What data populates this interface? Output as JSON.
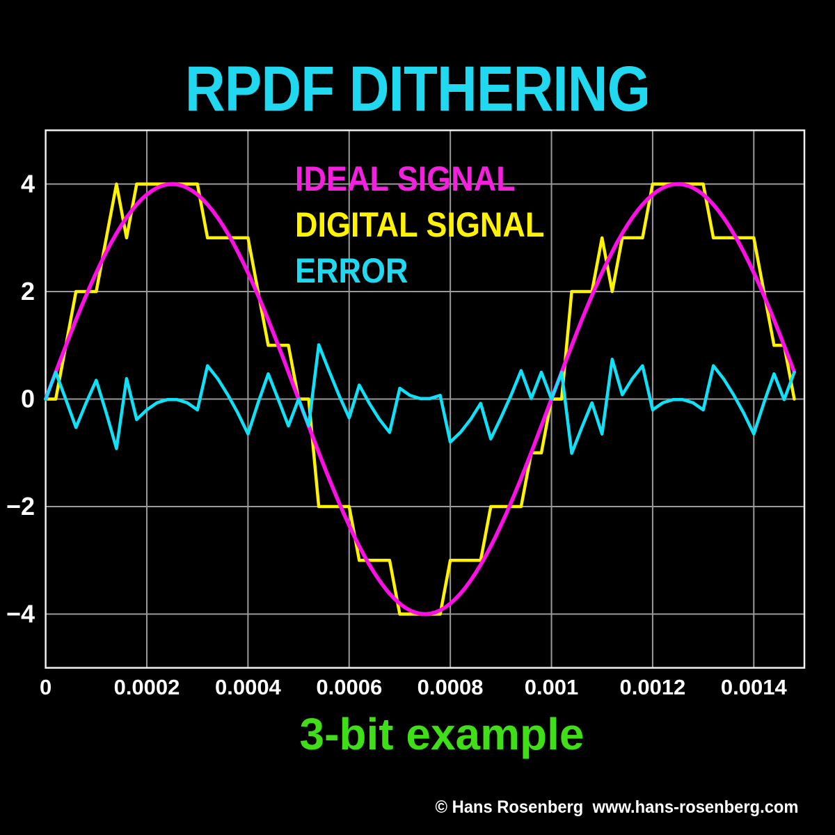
{
  "title": "RPDF DITHERING",
  "caption": "3-bit example",
  "footer": "© Hans Rosenberg  www.hans-rosenberg.com",
  "legend": [
    {
      "label": "IDEAL SIGNAL",
      "color": "#f320de"
    },
    {
      "label": "DIGITAL SIGNAL",
      "color": "#fff300"
    },
    {
      "label": "ERROR",
      "color": "#21d8f1"
    }
  ],
  "colors": {
    "background": "#000000",
    "title_cyan": "#21d8f1",
    "caption_green": "#3fde17",
    "footer_white": "#ffffff",
    "grid": "#9a9a9a",
    "spine": "#f0f0f0",
    "ideal_line": "#fc0fe4",
    "digital_line": "#fff300",
    "error_line": "#0ee1f8"
  },
  "chart_data": {
    "type": "line",
    "title": "RPDF DITHERING",
    "xlabel": "",
    "ylabel": "",
    "xlim": [
      0,
      0.0015
    ],
    "ylim": [
      -5,
      5
    ],
    "grid": true,
    "legend_position": "upper-left-inside",
    "sample_step_s": 2e-05,
    "xticks": {
      "values": [
        0,
        0.0002,
        0.0004,
        0.0006,
        0.0008,
        0.001,
        0.0012,
        0.0014
      ],
      "labels": [
        "0",
        "0.0002",
        "0.0004",
        "0.0006",
        "0.0008",
        "0.001",
        "0.0012",
        "0.0014"
      ]
    },
    "yticks": {
      "values": [
        4,
        2,
        0,
        -2,
        -4
      ],
      "labels": [
        "4",
        "2",
        "0",
        "−2",
        "−4"
      ]
    },
    "series": [
      {
        "name": "IDEAL SIGNAL",
        "shape": "sine",
        "amplitude": 4,
        "frequency_hz": 1000,
        "t_start": 0,
        "t_end": 0.00148,
        "color": "#fc0fe4",
        "stroke_width": 5.5
      },
      {
        "name": "DIGITAL SIGNAL",
        "shape": "samples",
        "color": "#fff300",
        "stroke_width": 4.5,
        "values": [
          0,
          0,
          1,
          2,
          2,
          2,
          3,
          4,
          3,
          4,
          4,
          4,
          4,
          4,
          4,
          4,
          3,
          3,
          3,
          3,
          3,
          2,
          1,
          1,
          1,
          0,
          0,
          -2,
          -2,
          -2,
          -2,
          -3,
          -3,
          -3,
          -3,
          -4,
          -4,
          -4,
          -4,
          -4,
          -3,
          -3,
          -3,
          -3,
          -2,
          -2,
          -2,
          -2,
          -1,
          -1,
          0,
          0,
          2,
          2,
          2,
          3,
          2,
          3,
          3,
          3,
          4,
          4,
          4,
          4,
          4,
          4,
          3,
          3,
          3,
          3,
          3,
          2,
          1,
          1,
          0
        ]
      },
      {
        "name": "ERROR",
        "shape": "samples",
        "color": "#0ee1f8",
        "stroke_width": 4.5,
        "values": [
          0.0,
          0.5,
          -0.01,
          -0.53,
          -0.07,
          0.35,
          -0.26,
          -0.92,
          0.38,
          -0.38,
          -0.2,
          -0.07,
          -0.01,
          -0.01,
          -0.07,
          -0.2,
          0.62,
          0.38,
          0.08,
          -0.26,
          -0.65,
          -0.07,
          0.47,
          -0.01,
          -0.5,
          0.0,
          -0.5,
          1.01,
          0.53,
          0.07,
          -0.35,
          0.26,
          -0.08,
          -0.38,
          -0.62,
          0.2,
          0.07,
          0.01,
          0.01,
          0.07,
          -0.8,
          -0.62,
          -0.38,
          -0.08,
          -0.74,
          -0.35,
          0.07,
          0.53,
          0.01,
          0.5,
          0.0,
          0.5,
          -1.01,
          -0.53,
          -0.07,
          -0.65,
          0.74,
          0.08,
          0.38,
          0.62,
          -0.2,
          -0.07,
          -0.01,
          -0.01,
          -0.07,
          -0.2,
          0.62,
          0.38,
          0.08,
          -0.26,
          -0.65,
          -0.07,
          0.47,
          -0.01,
          0.5
        ]
      }
    ]
  }
}
